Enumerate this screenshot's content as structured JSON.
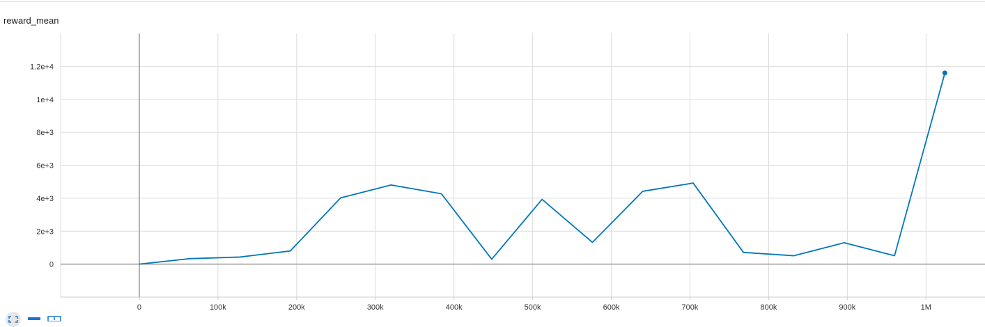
{
  "chart_data": {
    "type": "line",
    "title": "reward_mean",
    "xlabel": "",
    "ylabel": "",
    "xlim": [
      -100000,
      1075000
    ],
    "ylim": [
      -2000,
      14000
    ],
    "x_ticks": [
      0,
      100000,
      200000,
      300000,
      400000,
      500000,
      600000,
      700000,
      800000,
      900000,
      1000000
    ],
    "x_tick_labels": [
      "0",
      "100k",
      "200k",
      "300k",
      "400k",
      "500k",
      "600k",
      "700k",
      "800k",
      "900k",
      "1M"
    ],
    "y_ticks": [
      0,
      2000,
      4000,
      6000,
      8000,
      10000,
      12000
    ],
    "y_tick_labels": [
      "0",
      "2e+3",
      "4e+3",
      "6e+3",
      "8e+3",
      "1e+4",
      "1.2e+4"
    ],
    "grid": true,
    "line_color": "#0077bb",
    "series": [
      {
        "x": [
          0,
          64000,
          128000,
          192000,
          256000,
          320000,
          384000,
          448000,
          512000,
          576000,
          640000,
          704000,
          768000,
          832000,
          896000,
          960000,
          1024000
        ],
        "values": [
          0,
          330,
          430,
          800,
          4020,
          4800,
          4270,
          300,
          3930,
          1320,
          4420,
          4920,
          710,
          510,
          1300,
          510,
          11600
        ]
      }
    ]
  },
  "toolbar": {
    "icons": [
      "fullscreen-icon",
      "toggle-log-scale-icon",
      "fit-domain-icon"
    ]
  }
}
